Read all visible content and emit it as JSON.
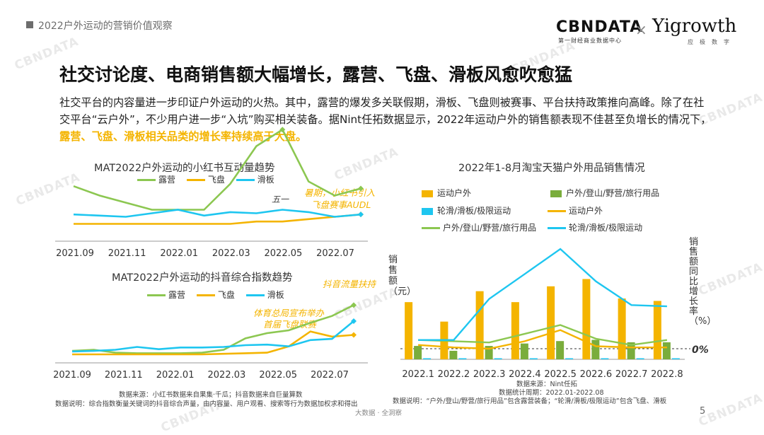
{
  "header": {
    "section": "2022户外运动的营销价值观察"
  },
  "logos": {
    "cbn": "CBNDATA",
    "cbn_sub": "第一财经商业数据中心",
    "x": "×",
    "yi": "Yigrowth",
    "yi_sub": "应极数字"
  },
  "title": "社交讨论度、电商销售额大幅增长，露营、飞盘、滑板风愈吹愈猛",
  "paragraph": {
    "main": "社交平台的内容量进一步印证户外运动的火热。其中，露营的爆发多关联假期，滑板、飞盘则被赛事、平台扶持政策推向高峰。除了在社交平台“云户外”，不少用户进一步“入坑”购买相关装备。据Nint任拓数据显示，2022年运动户外的销售额表现不佳甚至负增长的情况下，",
    "highlight": "露营、飞盘、滑板相关品类的增长率持续高于大盘。"
  },
  "colors": {
    "camping": "#8cc751",
    "frisbee": "#f4b400",
    "skate": "#1ec6f0",
    "green_bar": "#7aad3c",
    "zero_line": "#333333"
  },
  "chart_data": [
    {
      "type": "line",
      "title": "MAT2022户外运动的小红书互动量趋势",
      "series": [
        {
          "name": "露营",
          "values": [
            0.66,
            0.62,
            0.59,
            0.56,
            0.56,
            0.56,
            0.67,
            0.83,
            0.9,
            0.68,
            0.62,
            0.65
          ]
        },
        {
          "name": "飞盘",
          "values": [
            0.5,
            0.5,
            0.5,
            0.5,
            0.5,
            0.5,
            0.5,
            0.51,
            0.51,
            0.52,
            0.53,
            0.54
          ]
        },
        {
          "name": "滑板",
          "values": [
            0.54,
            0.535,
            0.53,
            0.545,
            0.56,
            0.535,
            0.55,
            0.545,
            0.56,
            0.55,
            0.53,
            0.54
          ]
        }
      ],
      "x_ticks": [
        "2021.09",
        "2021.11",
        "2022.01",
        "2022.03",
        "2022.05",
        "2022.07"
      ],
      "annotations": {
        "wuyi": "五一",
        "summer": "暑期，小红书引入",
        "summer2": "飞盘赛事AUDL"
      }
    },
    {
      "type": "line",
      "title": "MAT2022户外运动的抖音综合指数趋势",
      "series": [
        {
          "name": "露营",
          "values": [
            0.06,
            0.08,
            0.03,
            0.02,
            0.02,
            0.02,
            0.03,
            0.08,
            0.28,
            0.37,
            0.42,
            0.55,
            0.67,
            0.86
          ]
        },
        {
          "name": "飞盘",
          "values": [
            0.0,
            0.0,
            0.0,
            0.0,
            0.0,
            0.0,
            0.0,
            0.01,
            0.02,
            0.03,
            0.14,
            0.4,
            0.31,
            0.34
          ]
        },
        {
          "name": "滑板",
          "values": [
            0.05,
            0.06,
            0.08,
            0.13,
            0.09,
            0.12,
            0.12,
            0.13,
            0.16,
            0.17,
            0.14,
            0.25,
            0.27,
            0.58
          ]
        }
      ],
      "x_ticks": [
        "2021.09",
        "2021.11",
        "2022.01",
        "2022.03",
        "2022.05",
        "2022.07"
      ],
      "annotations": {
        "douyin": "抖音流量扶持",
        "gov1": "体育总局宣布举办",
        "gov2": "首届飞盘联赛"
      }
    },
    {
      "type": "bar",
      "title": "2022年1-8月淘宝天猫户外用品销售情况",
      "categories": [
        "2022.1",
        "2022.2",
        "2022.3",
        "2022.4",
        "2022.5",
        "2022.6",
        "2022.7",
        "2022.8"
      ],
      "bar_series": [
        {
          "name": "运动户外",
          "values": [
            0.47,
            0.31,
            0.56,
            0.47,
            0.6,
            0.66,
            0.5,
            0.48
          ]
        },
        {
          "name": "户外/登山/野营/旅行用品",
          "values": [
            0.11,
            0.07,
            0.11,
            0.13,
            0.15,
            0.16,
            0.14,
            0.14
          ]
        },
        {
          "name": "轮滑/滑板/极限运动",
          "values": [
            0.005,
            0.005,
            0.005,
            0.005,
            0.005,
            0.005,
            0.005,
            0.005
          ]
        }
      ],
      "line_series": [
        {
          "name": "运动户外",
          "values": [
            0.03,
            0.01,
            0.0,
            0.06,
            0.15,
            0.02,
            0.01,
            0.01
          ]
        },
        {
          "name": "户外/登山/野营/旅行用品",
          "values": [
            0.07,
            0.06,
            0.05,
            0.12,
            0.19,
            0.08,
            0.03,
            0.07
          ]
        },
        {
          "name": "轮滑/滑板/极限运动",
          "values": [
            0.07,
            0.07,
            0.4,
            0.6,
            0.8,
            0.54,
            0.35,
            0.34
          ]
        }
      ],
      "ylabel_left": "销售额（元）",
      "ylabel_right": "销售额同比增长率（%）",
      "zero_label": "0%"
    }
  ],
  "footer": {
    "left1": "数据来源：小红书数据来自果集·千瓜；抖音数据来自巨量算数",
    "left2": "数据说明：综合指数衡量关键词的抖音综合声量，由内容量、用户观看、搜索等行为数据加权求和得出",
    "right1": "数据来源：Nint任拓",
    "right2": "数据统计周期：2022.01-2022.08",
    "right3": "数据说明：“户外/登山/野营/旅行用品”包含露营装备；“轮滑/滑板/极限运动”包含飞盘、滑板",
    "center": "大数据 · 全洞察",
    "page": "5"
  },
  "watermark": "CBNDATA"
}
